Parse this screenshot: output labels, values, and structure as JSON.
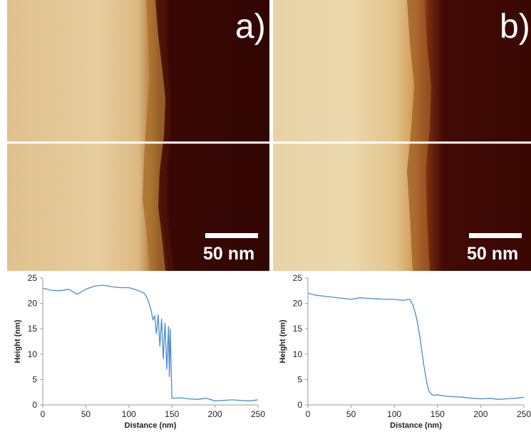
{
  "panels": [
    {
      "label": "a)",
      "scale_bar": "50 nm"
    },
    {
      "label": "b)",
      "scale_bar": "50 nm"
    }
  ],
  "colors": {
    "substrate_light": "#e8cf9a",
    "substrate_mid": "#d8b47a",
    "film_dark": "#3a0804",
    "profile_line": "#4a8ccc",
    "scan_line": "#ffffff"
  },
  "chart_data": [
    {
      "type": "line",
      "xlabel": "Distance (nm)",
      "ylabel": "Height (nm)",
      "xlim": [
        0,
        250
      ],
      "ylim": [
        0,
        25
      ],
      "xticks": [
        0,
        50,
        100,
        150,
        200,
        250
      ],
      "yticks": [
        0,
        5,
        10,
        15,
        20,
        25
      ],
      "series": [
        {
          "x": [
            0,
            10,
            20,
            30,
            40,
            50,
            60,
            70,
            80,
            90,
            100,
            110,
            118,
            122,
            126,
            128,
            130,
            132,
            134,
            136,
            138,
            140,
            142,
            144,
            146,
            147,
            148,
            150,
            160,
            170,
            180,
            190,
            200,
            210,
            220,
            230,
            240,
            250
          ],
          "y": [
            23,
            22.6,
            22.5,
            22.8,
            21.8,
            22.8,
            23.4,
            23.6,
            23.3,
            23.1,
            23.1,
            22.6,
            22.0,
            20.8,
            18.5,
            16.8,
            17.5,
            14.0,
            17.8,
            11.5,
            17.0,
            9.0,
            16.2,
            7.0,
            15.5,
            5.5,
            15.0,
            1.3,
            1.4,
            1.2,
            1.1,
            1.3,
            0.8,
            0.9,
            1.0,
            0.9,
            0.8,
            1.0
          ]
        }
      ]
    },
    {
      "type": "line",
      "xlabel": "Distance (nm)",
      "ylabel": "Height (nm)",
      "xlim": [
        0,
        250
      ],
      "ylim": [
        0,
        25
      ],
      "xticks": [
        0,
        50,
        100,
        150,
        200,
        250
      ],
      "yticks": [
        0,
        5,
        10,
        15,
        20,
        25
      ],
      "series": [
        {
          "x": [
            0,
            10,
            20,
            30,
            40,
            50,
            60,
            70,
            80,
            90,
            100,
            110,
            118,
            122,
            126,
            130,
            134,
            138,
            140,
            142,
            144,
            146,
            150,
            160,
            170,
            180,
            190,
            200,
            210,
            220,
            230,
            240,
            250
          ],
          "y": [
            22,
            21.6,
            21.4,
            21.2,
            21.0,
            20.8,
            21.1,
            21.0,
            20.9,
            20.8,
            20.8,
            20.6,
            20.8,
            19.5,
            17.0,
            13.0,
            8.0,
            4.0,
            2.8,
            2.3,
            2.0,
            1.9,
            2.0,
            1.7,
            1.6,
            1.5,
            1.3,
            1.2,
            1.3,
            1.1,
            1.2,
            1.3,
            1.5
          ]
        }
      ]
    }
  ]
}
